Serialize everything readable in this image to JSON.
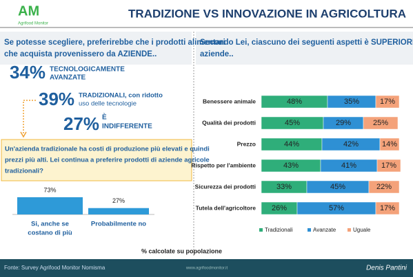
{
  "header": {
    "logo": "AM",
    "brand": "Agrifood Monitor",
    "title": "TRADIZIONE VS INNOVAZIONE IN AGRICOLTURA"
  },
  "left": {
    "question": [
      "Se potesse scegliere, preferirebbe che i prodotti alimentari",
      "che acquista provenissero da AZIENDE.."
    ],
    "stats": [
      {
        "value": "34%",
        "label": [
          "TECNOLOGICAMENTE",
          "AVANZATE"
        ]
      },
      {
        "value": "39%",
        "label": [
          "TRADIZIONALI, con ridotto",
          "uso delle tecnologie"
        ]
      },
      {
        "value": "27%",
        "label": [
          "È",
          "INDIFFERENTE"
        ]
      }
    ],
    "followup": [
      "Un'azienda tradizionale ha costi di produzione più elevati e quindi",
      "prezzi più alti. Lei continua a preferire prodotti di aziende agricole",
      "tradizionali?"
    ]
  },
  "right": {
    "question": [
      "Secondo Lei, ciascuno dei seguenti aspetti è SUPERIORE nelle",
      "aziende.."
    ]
  },
  "chart_data": [
    {
      "type": "bar",
      "categories": [
        [
          "Si, anche se",
          "costano di più"
        ],
        [
          "Probabilmente no"
        ]
      ],
      "values": [
        73,
        27
      ],
      "value_labels": [
        "73%",
        "27%"
      ],
      "color": "#2e9ad8",
      "ylim": [
        0,
        80
      ]
    },
    {
      "type": "stacked-hbar",
      "categories": [
        "Benessere animale",
        "Qualità dei prodotti",
        "Prezzo",
        "Rispetto per l'ambiente",
        "Sicurezza dei prodotti",
        "Tutela dell'agricoltore"
      ],
      "xlim": [
        0,
        100
      ],
      "series": [
        {
          "name": "Tradizionali",
          "color": "#2fae7a",
          "values": [
            48,
            45,
            44,
            43,
            33,
            26
          ],
          "value_labels": [
            "48%",
            "45%",
            "44%",
            "43%",
            "33%",
            "26%"
          ]
        },
        {
          "name": "Avanzate",
          "color": "#2e90d4",
          "values": [
            35,
            29,
            42,
            41,
            45,
            57
          ],
          "value_labels": [
            "35%",
            "29%",
            "42%",
            "41%",
            "45%",
            "57%"
          ]
        },
        {
          "name": "Uguale",
          "color": "#f4a27a",
          "values": [
            17,
            25,
            14,
            17,
            22,
            17
          ],
          "value_labels": [
            "17%",
            "25%",
            "14%",
            "17%",
            "22%",
            "17%"
          ]
        }
      ],
      "legend": "bottom"
    }
  ],
  "footer": {
    "note": "% calcolate su popolazione",
    "source": "Fonte: Survey Agrifood Monitor Nomisma",
    "url": "www.agrifoodmonitor.it",
    "author": "Denis Pantini"
  }
}
